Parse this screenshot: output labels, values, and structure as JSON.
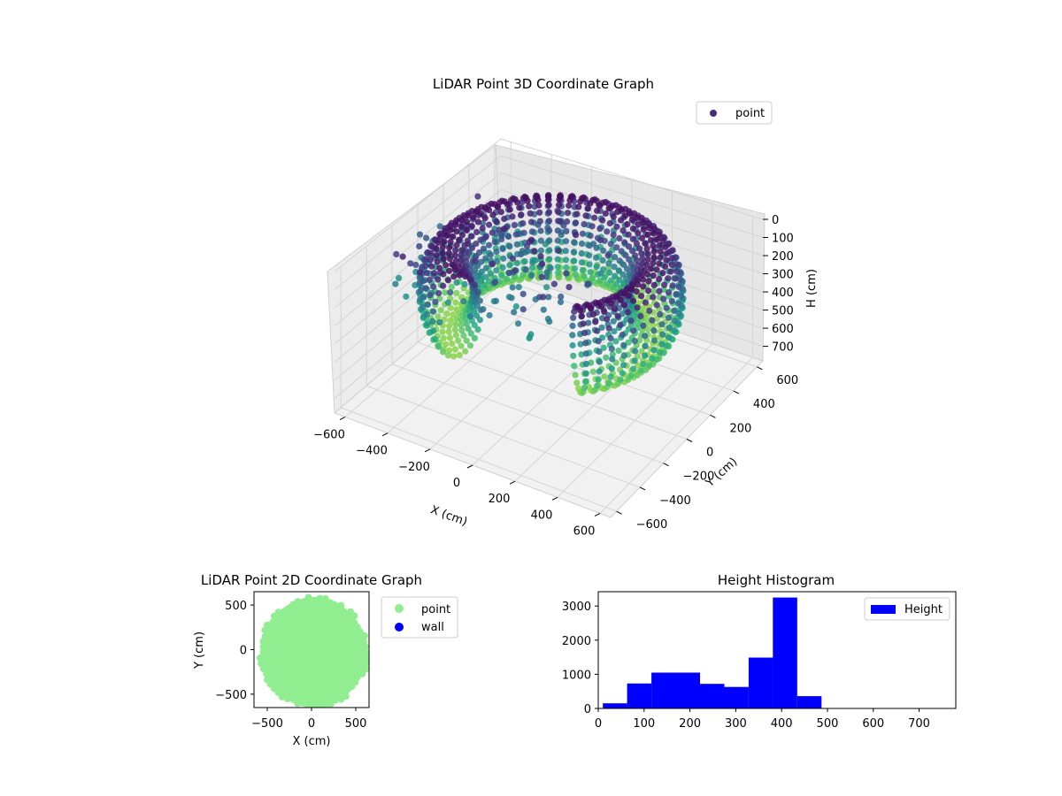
{
  "chart_data": [
    {
      "type": "scatter3d",
      "title": "LiDAR Point 3D Coordinate Graph",
      "xlabel": "X (cm)",
      "ylabel": "Y (cm)",
      "zlabel": "H (cm)",
      "x_ticks": [
        -600,
        -400,
        -200,
        0,
        200,
        400,
        600
      ],
      "y_ticks": [
        -600,
        -400,
        -200,
        0,
        200,
        400,
        600
      ],
      "z_ticks": [
        0,
        100,
        200,
        300,
        400,
        500,
        600,
        700
      ],
      "xlim": [
        -650,
        650
      ],
      "ylim": [
        -650,
        650
      ],
      "zlim": [
        0,
        780
      ],
      "z_inverted": true,
      "colormap": "viridis",
      "legend": [
        {
          "name": "point",
          "color": "#472c7a"
        }
      ],
      "legend_position": "top-right",
      "grid": true,
      "shape": "ring-shaped point cloud of vertical scan slices, radius ≈ 500–600 cm, height 0–500 cm"
    },
    {
      "type": "scatter",
      "title": "LiDAR Point 2D Coordinate Graph",
      "xlabel": "X (cm)",
      "ylabel": "Y (cm)",
      "x_ticks": [
        -500,
        0,
        500
      ],
      "y_ticks": [
        -500,
        0,
        500
      ],
      "xlim": [
        -650,
        650
      ],
      "ylim": [
        -650,
        650
      ],
      "series": [
        {
          "name": "point",
          "color": "#90ee90",
          "shape": "filled disc, radius ≈ 600 cm, centered at origin"
        },
        {
          "name": "wall",
          "color": "#0000ff"
        }
      ],
      "legend_position": "outside-right",
      "grid": false
    },
    {
      "type": "bar",
      "title": "Height Histogram",
      "xlabel": "",
      "ylabel": "",
      "bin_edges": [
        10,
        63,
        116,
        169,
        222,
        275,
        328,
        381,
        434,
        487
      ],
      "values": [
        150,
        730,
        1050,
        1050,
        720,
        630,
        1490,
        3250,
        360
      ],
      "x_ticks": [
        0,
        100,
        200,
        300,
        400,
        500,
        600,
        700
      ],
      "y_ticks": [
        0,
        1000,
        2000,
        3000
      ],
      "xlim": [
        0,
        780
      ],
      "ylim": [
        0,
        3420
      ],
      "legend": [
        {
          "name": "Height",
          "color": "#0000ff"
        }
      ],
      "legend_position": "top-right",
      "color": "#0000ff",
      "grid": false
    }
  ]
}
